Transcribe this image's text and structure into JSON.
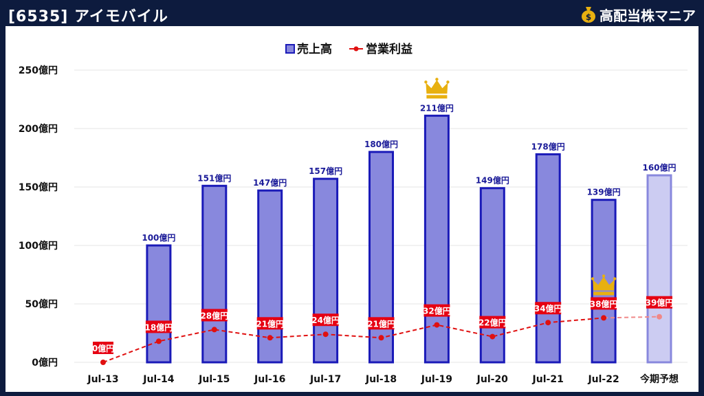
{
  "header": {
    "title": "[6535] アイモバイル",
    "brand": "高配当株マニア"
  },
  "colors": {
    "background": "#0d1b3e",
    "sales_fill": "#8888dd",
    "sales_stroke": "#1a1ab8",
    "forecast_fill": "#ccccf2",
    "forecast_stroke": "#8888dd",
    "op_line": "#e01010",
    "op_forecast_line": "#f08888",
    "crown": "#e8b010"
  },
  "chart_data": {
    "type": "bar",
    "categories": [
      "Jul-13",
      "Jul-14",
      "Jul-15",
      "Jul-16",
      "Jul-17",
      "Jul-18",
      "Jul-19",
      "Jul-20",
      "Jul-21",
      "Jul-22",
      "今期予想"
    ],
    "series": [
      {
        "name": "売上高",
        "type": "bar",
        "values": [
          0,
          100,
          151,
          147,
          157,
          180,
          211,
          149,
          178,
          139,
          160
        ],
        "labels": [
          "",
          "100億円",
          "151億円",
          "147億円",
          "157億円",
          "180億円",
          "211億円",
          "149億円",
          "178億円",
          "139億円",
          "160億円"
        ]
      },
      {
        "name": "営業利益",
        "type": "line",
        "values": [
          0,
          18,
          28,
          21,
          24,
          21,
          32,
          22,
          34,
          38,
          39
        ],
        "labels": [
          "0億円",
          "18億円",
          "28億円",
          "21億円",
          "24億円",
          "21億円",
          "32億円",
          "22億円",
          "34億円",
          "38億円",
          "39億円"
        ]
      }
    ],
    "forecast_index": 10,
    "record_high_markers": [
      {
        "series": "売上高",
        "category": "Jul-19"
      },
      {
        "series": "営業利益",
        "category": "Jul-22"
      }
    ],
    "ylim": [
      0,
      250
    ],
    "yticks": [
      0,
      50,
      100,
      150,
      200,
      250
    ],
    "ytick_labels": [
      "0億円",
      "50億円",
      "100億円",
      "150億円",
      "200億円",
      "250億円"
    ],
    "legend_position": "top-center",
    "grid": true
  }
}
